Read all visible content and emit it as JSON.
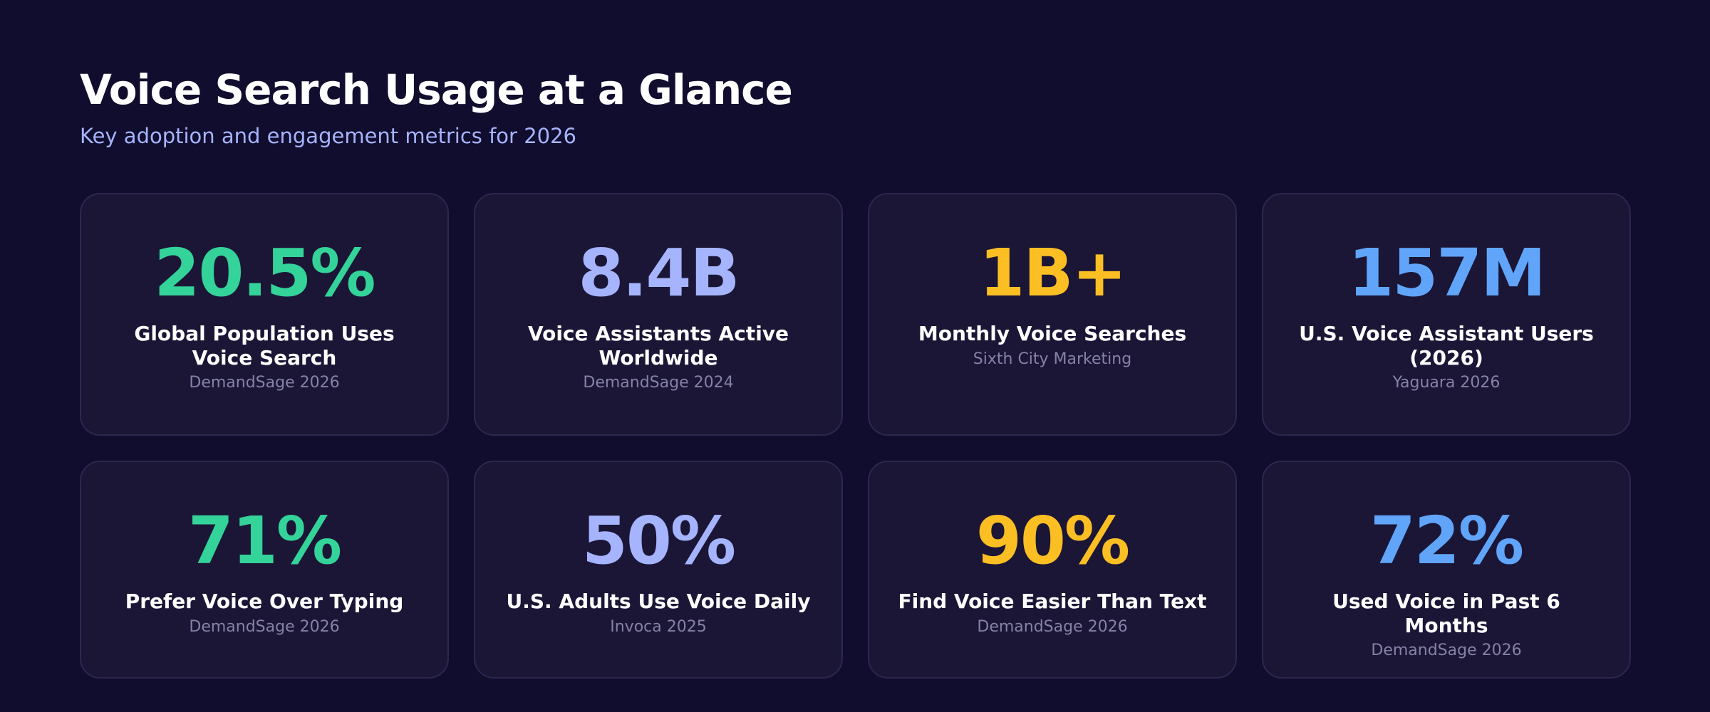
{
  "header": {
    "title": "Voice Search Usage at a Glance",
    "subtitle": "Key adoption and engagement metrics for 2026"
  },
  "cards": [
    {
      "value": "20.5%",
      "label": "Global Population Uses Voice Search",
      "source": "DemandSage 2026",
      "color": "#34d399"
    },
    {
      "value": "8.4B",
      "label": "Voice Assistants Active Worldwide",
      "source": "DemandSage 2024",
      "color": "#a5b4fc"
    },
    {
      "value": "1B+",
      "label": "Monthly Voice Searches",
      "source": "Sixth City Marketing",
      "color": "#fbbf24"
    },
    {
      "value": "157M",
      "label": "U.S. Voice Assistant Users (2026)",
      "source": "Yaguara 2026",
      "color": "#60a5fa"
    },
    {
      "value": "71%",
      "label": "Prefer Voice Over Typing",
      "source": "DemandSage 2026",
      "color": "#34d399"
    },
    {
      "value": "50%",
      "label": "U.S. Adults Use Voice Daily",
      "source": "Invoca 2025",
      "color": "#a5b4fc"
    },
    {
      "value": "90%",
      "label": "Find Voice Easier Than Text",
      "source": "DemandSage 2026",
      "color": "#fbbf24"
    },
    {
      "value": "72%",
      "label": "Used Voice in Past 6 Months",
      "source": "DemandSage 2026",
      "color": "#60a5fa"
    }
  ]
}
